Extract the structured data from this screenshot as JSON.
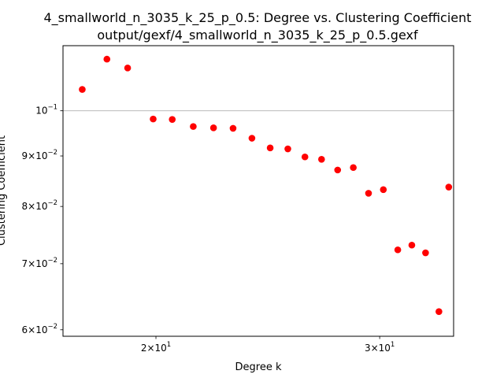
{
  "chart_data": {
    "type": "scatter",
    "title": "4_smallworld_n_3035_k_25_p_0.5: Degree vs. Clustering Coefficient",
    "subtitle": "output/gexf/4_smallworld_n_3035_k_25_p_0.5.gexf",
    "xlabel": "Degree k",
    "ylabel": "Clustering Coefficient",
    "xscale": "log",
    "yscale": "log",
    "xlim": [
      16.9,
      34.3
    ],
    "ylim": [
      0.0591,
      0.1164
    ],
    "grid": "y major only",
    "marker_color": "#ff0000",
    "x_ticks": [
      {
        "value": 20,
        "base": "2",
        "exp": "1"
      },
      {
        "value": 30,
        "base": "3",
        "exp": "1"
      }
    ],
    "y_ticks": [
      {
        "value": 0.06,
        "base": "6",
        "exp": "−2"
      },
      {
        "value": 0.07,
        "base": "7",
        "exp": "−2"
      },
      {
        "value": 0.08,
        "base": "8",
        "exp": "−2"
      },
      {
        "value": 0.09,
        "base": "9",
        "exp": "−2"
      },
      {
        "value": 0.1,
        "base": "10",
        "exp": "−1"
      }
    ],
    "points": [
      {
        "x": 17.5,
        "y": 0.1051
      },
      {
        "x": 18.3,
        "y": 0.1128
      },
      {
        "x": 19.0,
        "y": 0.1105
      },
      {
        "x": 19.9,
        "y": 0.0981
      },
      {
        "x": 20.6,
        "y": 0.098
      },
      {
        "x": 21.4,
        "y": 0.0964
      },
      {
        "x": 22.2,
        "y": 0.0961
      },
      {
        "x": 23.0,
        "y": 0.096
      },
      {
        "x": 23.8,
        "y": 0.0938
      },
      {
        "x": 24.6,
        "y": 0.0917
      },
      {
        "x": 25.4,
        "y": 0.0915
      },
      {
        "x": 26.2,
        "y": 0.0898
      },
      {
        "x": 27.0,
        "y": 0.0893
      },
      {
        "x": 27.8,
        "y": 0.0871
      },
      {
        "x": 28.6,
        "y": 0.0876
      },
      {
        "x": 29.4,
        "y": 0.0825
      },
      {
        "x": 30.2,
        "y": 0.0832
      },
      {
        "x": 31.0,
        "y": 0.0723
      },
      {
        "x": 31.8,
        "y": 0.0731
      },
      {
        "x": 32.6,
        "y": 0.0718
      },
      {
        "x": 33.4,
        "y": 0.0626
      },
      {
        "x": 34.0,
        "y": 0.0837
      }
    ]
  }
}
